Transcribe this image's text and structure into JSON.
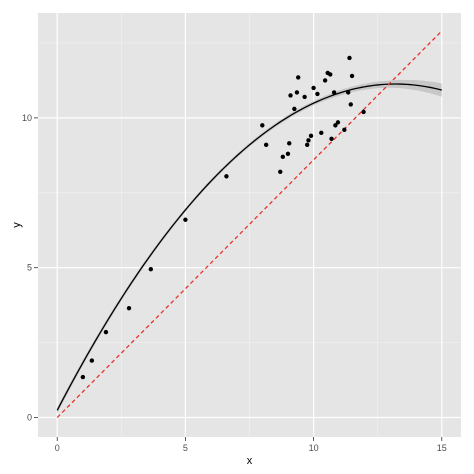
{
  "chart_data": {
    "type": "scatter",
    "title": "",
    "xlabel": "x",
    "ylabel": "y",
    "xlim": [
      -0.75,
      15.75
    ],
    "ylim": [
      -0.65,
      13.5
    ],
    "x_ticks": [
      0,
      5,
      10,
      15
    ],
    "x_tick_labels": [
      "0",
      "5",
      "10",
      "15"
    ],
    "y_ticks": [
      0,
      5,
      10
    ],
    "y_tick_labels": [
      "0",
      "5",
      "10"
    ],
    "x_minor_ticks": [
      2.5,
      7.5,
      12.5
    ],
    "y_minor_ticks": [
      2.5,
      7.5,
      12.5
    ],
    "grid": true,
    "legend": "none",
    "colors": {
      "panel_background": "#e5e5e5",
      "grid_major": "#ffffff",
      "grid_minor": "#f2f2f2",
      "points": "#000000",
      "smooth_line": "#000000",
      "confidence_band": "#b3b3b3",
      "reference_line": "#e8322a"
    },
    "points": [
      [
        1.0,
        1.35
      ],
      [
        1.35,
        1.9
      ],
      [
        1.9,
        2.85
      ],
      [
        2.8,
        3.65
      ],
      [
        3.65,
        4.95
      ],
      [
        5.0,
        6.6
      ],
      [
        6.6,
        8.05
      ],
      [
        8.0,
        9.75
      ],
      [
        8.15,
        9.1
      ],
      [
        8.7,
        8.2
      ],
      [
        8.8,
        8.7
      ],
      [
        9.0,
        8.8
      ],
      [
        9.05,
        9.15
      ],
      [
        9.1,
        10.75
      ],
      [
        9.25,
        10.3
      ],
      [
        9.35,
        10.85
      ],
      [
        9.4,
        11.35
      ],
      [
        9.65,
        10.7
      ],
      [
        9.75,
        9.1
      ],
      [
        9.8,
        9.25
      ],
      [
        9.9,
        9.4
      ],
      [
        10.0,
        11.0
      ],
      [
        10.15,
        10.8
      ],
      [
        10.3,
        9.5
      ],
      [
        10.45,
        11.25
      ],
      [
        10.55,
        11.5
      ],
      [
        10.65,
        11.45
      ],
      [
        10.7,
        9.3
      ],
      [
        10.8,
        10.85
      ],
      [
        10.85,
        9.75
      ],
      [
        10.95,
        9.85
      ],
      [
        11.2,
        9.6
      ],
      [
        11.35,
        10.85
      ],
      [
        11.4,
        12.0
      ],
      [
        11.45,
        10.45
      ],
      [
        11.5,
        11.4
      ],
      [
        11.95,
        10.2
      ]
    ],
    "smooth_fit": {
      "method": "quadratic",
      "coefficients": [
        0.24,
        1.65,
        -0.0625
      ],
      "x_range": [
        0,
        15
      ],
      "confidence_band_halfwidth": [
        [
          0,
          0.1
        ],
        [
          5,
          0.06
        ],
        [
          10,
          0.07
        ],
        [
          11,
          0.09
        ],
        [
          12,
          0.1
        ],
        [
          13,
          0.12
        ],
        [
          14,
          0.17
        ],
        [
          15,
          0.22
        ]
      ]
    },
    "reference_line": {
      "style": "dashed",
      "intercept": 0.0,
      "slope": 0.86,
      "x_range": [
        0,
        15
      ]
    }
  }
}
